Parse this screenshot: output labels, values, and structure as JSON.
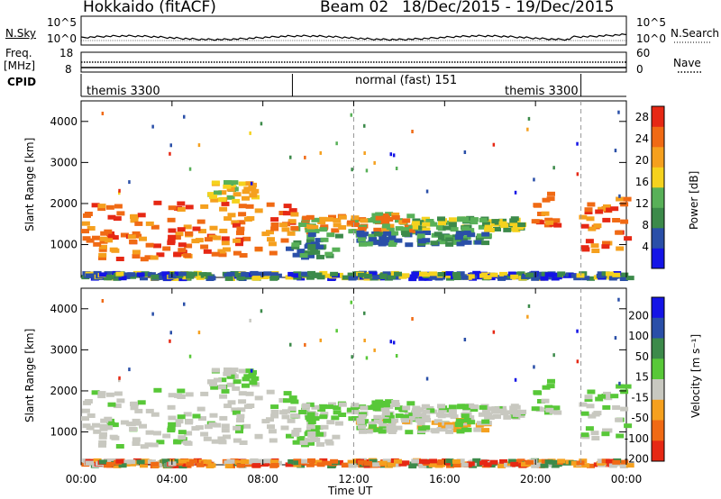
{
  "header": {
    "station": "Hokkaido (fitACF)",
    "beam": "Beam 02",
    "dates": "18/Dec/2015 - 19/Dec/2015"
  },
  "left_labels": {
    "nsky": "N.Sky",
    "freq": "Freq.",
    "mhz": "[MHz]",
    "cpid": "CPID"
  },
  "right_labels": {
    "nsearch": "N.Search",
    "nave": "Nave"
  },
  "noise_ticks": {
    "left_top": "10^5",
    "left_bottom": "10^0",
    "right_top": "10^5",
    "right_bottom": "10^0"
  },
  "freq_ticks": {
    "left_top": "18",
    "left_bottom": "8",
    "right_top": "60",
    "right_bottom": "0"
  },
  "cpid_segments": [
    {
      "label": "themis 3300",
      "start": 0.0,
      "end": 9.3
    },
    {
      "label": "normal (fast) 151",
      "start": 9.3,
      "end": 22.0
    },
    {
      "label": "themis 3300",
      "start": 22.0,
      "end": 24.0
    }
  ],
  "colors": {
    "power": [
      "#1414e6",
      "#2a4fa8",
      "#3c8a4a",
      "#58b058",
      "#f5d21e",
      "#f5a01e",
      "#f06a14",
      "#e62814"
    ],
    "velocity": [
      "#1414e6",
      "#2a4fa8",
      "#3c8a4a",
      "#58c838",
      "#c8c8c0",
      "#f5a01e",
      "#f06a14",
      "#e62814"
    ]
  },
  "chart_data": [
    {
      "type": "heatmap",
      "panel": "power",
      "ylabel": "Slant Range [km]",
      "xlabel": "Time UT",
      "x_ticks": [
        "00:00",
        "04:00",
        "08:00",
        "12:00",
        "16:00",
        "20:00",
        "00:00"
      ],
      "y_ticks": [
        "1000",
        "2000",
        "3000",
        "4000"
      ],
      "ylim": [
        200,
        4500
      ],
      "xlim_hours": [
        0,
        24
      ],
      "colorbar": {
        "label": "Power [dB]",
        "ticks": [
          "4",
          "8",
          "12",
          "16",
          "20",
          "24",
          "28"
        ],
        "range": [
          0,
          30
        ]
      }
    },
    {
      "type": "heatmap",
      "panel": "velocity",
      "ylabel": "Slant Range [km]",
      "xlabel": "Time UT",
      "x_ticks": [
        "00:00",
        "04:00",
        "08:00",
        "12:00",
        "16:00",
        "20:00",
        "00:00"
      ],
      "y_ticks": [
        "1000",
        "2000",
        "3000",
        "4000"
      ],
      "ylim": [
        200,
        4500
      ],
      "xlim_hours": [
        0,
        24
      ],
      "colorbar": {
        "label": "Velocity [m s⁻¹]",
        "ticks": [
          "200",
          "100",
          "50",
          "15",
          "-15",
          "-50",
          "-100",
          "-200"
        ],
        "range": [
          -300,
          300
        ]
      }
    }
  ]
}
